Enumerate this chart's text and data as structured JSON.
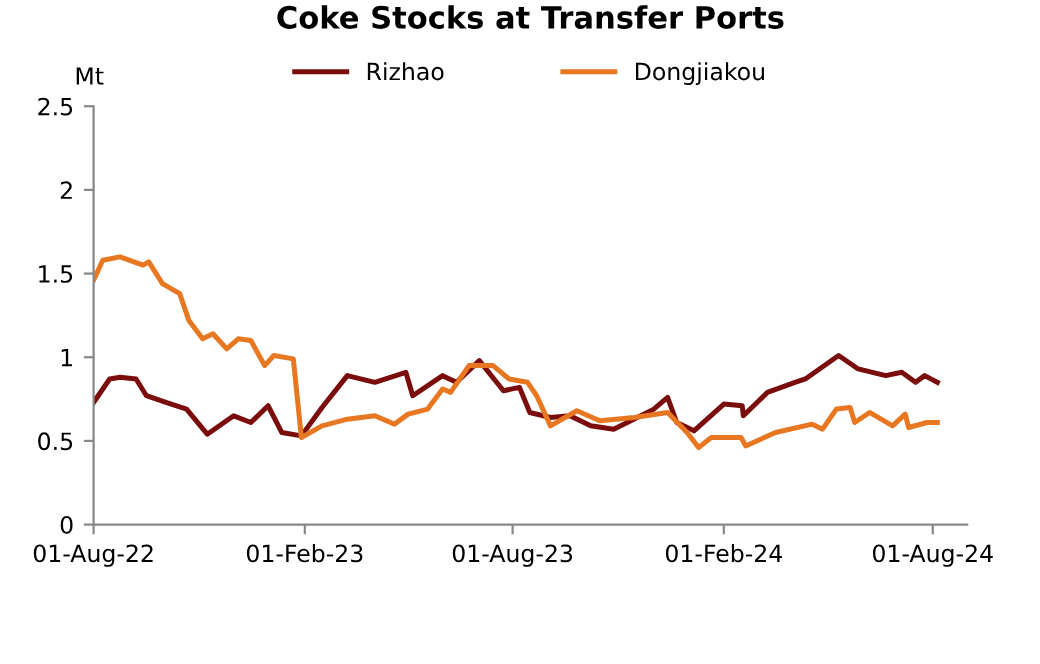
{
  "chart_data": {
    "type": "line",
    "title": "Coke Stocks at Transfer Ports",
    "ylabel": "Mt",
    "xlim": [
      "2022-08-01",
      "2024-08-31"
    ],
    "xticks": [
      {
        "value": "2022-08-01",
        "label": "01-Aug-22"
      },
      {
        "value": "2023-02-01",
        "label": "01-Feb-23"
      },
      {
        "value": "2023-08-01",
        "label": "01-Aug-23"
      },
      {
        "value": "2024-02-01",
        "label": "01-Feb-24"
      },
      {
        "value": "2024-08-01",
        "label": "01-Aug-24"
      }
    ],
    "ylim": [
      0,
      2.5
    ],
    "yticks": [
      0,
      0.5,
      1,
      1.5,
      2,
      2.5
    ],
    "grid": false,
    "legend": "top",
    "marker": "none",
    "line_style": "solid",
    "series": [
      {
        "name": "Rizhao",
        "color": "#7b0c0c",
        "x": [
          "2022-08-01",
          "2022-08-15",
          "2022-08-24",
          "2022-09-07",
          "2022-09-16",
          "2022-10-03",
          "2022-10-21",
          "2022-11-08",
          "2022-12-01",
          "2022-12-16",
          "2022-12-31",
          "2023-01-12",
          "2023-01-29",
          "2023-02-16",
          "2023-03-10",
          "2023-04-03",
          "2023-04-30",
          "2023-05-06",
          "2023-06-01",
          "2023-06-13",
          "2023-07-03",
          "2023-07-24",
          "2023-08-07",
          "2023-08-16",
          "2023-09-03",
          "2023-09-20",
          "2023-10-08",
          "2023-10-28",
          "2023-11-12",
          "2023-12-02",
          "2023-12-14",
          "2023-12-22",
          "2024-01-06",
          "2024-02-01",
          "2024-02-17",
          "2024-02-18",
          "2024-03-10",
          "2024-04-03",
          "2024-04-12",
          "2024-05-11",
          "2024-05-28",
          "2024-06-21",
          "2024-07-05",
          "2024-07-17",
          "2024-07-25",
          "2024-08-05"
        ],
        "values": [
          0.73,
          0.87,
          0.88,
          0.87,
          0.77,
          0.73,
          0.69,
          0.54,
          0.65,
          0.61,
          0.71,
          0.55,
          0.53,
          0.7,
          0.89,
          0.85,
          0.91,
          0.77,
          0.89,
          0.85,
          0.98,
          0.8,
          0.82,
          0.67,
          0.64,
          0.65,
          0.59,
          0.57,
          0.62,
          0.69,
          0.76,
          0.61,
          0.56,
          0.72,
          0.71,
          0.65,
          0.79,
          0.85,
          0.87,
          1.01,
          0.93,
          0.89,
          0.91,
          0.85,
          0.89,
          0.85
        ]
      },
      {
        "name": "Dongjiakou",
        "color": "#e87722",
        "x": [
          "2022-08-01",
          "2022-08-09",
          "2022-08-24",
          "2022-09-13",
          "2022-09-18",
          "2022-09-30",
          "2022-10-15",
          "2022-10-23",
          "2022-11-04",
          "2022-11-13",
          "2022-11-25",
          "2022-12-05",
          "2022-12-16",
          "2022-12-28",
          "2023-01-05",
          "2023-01-22",
          "2023-01-29",
          "2023-02-16",
          "2023-03-10",
          "2023-04-03",
          "2023-04-20",
          "2023-05-02",
          "2023-05-19",
          "2023-06-01",
          "2023-06-08",
          "2023-06-24",
          "2023-07-15",
          "2023-07-29",
          "2023-08-14",
          "2023-08-22",
          "2023-09-03",
          "2023-09-26",
          "2023-10-16",
          "2023-11-15",
          "2023-12-14",
          "2023-12-31",
          "2024-01-10",
          "2024-01-21",
          "2024-02-16",
          "2024-02-20",
          "2024-03-17",
          "2024-04-18",
          "2024-04-27",
          "2024-05-09",
          "2024-05-21",
          "2024-05-25",
          "2024-06-07",
          "2024-06-27",
          "2024-07-08",
          "2024-07-11",
          "2024-07-27",
          "2024-08-05"
        ],
        "values": [
          1.46,
          1.58,
          1.6,
          1.55,
          1.57,
          1.44,
          1.38,
          1.22,
          1.11,
          1.14,
          1.05,
          1.11,
          1.1,
          0.95,
          1.01,
          0.99,
          0.52,
          0.59,
          0.63,
          0.65,
          0.6,
          0.66,
          0.69,
          0.81,
          0.79,
          0.95,
          0.95,
          0.87,
          0.85,
          0.77,
          0.59,
          0.68,
          0.62,
          0.64,
          0.67,
          0.55,
          0.46,
          0.52,
          0.52,
          0.47,
          0.55,
          0.6,
          0.57,
          0.69,
          0.7,
          0.61,
          0.67,
          0.59,
          0.66,
          0.58,
          0.61,
          0.61
        ]
      }
    ]
  }
}
